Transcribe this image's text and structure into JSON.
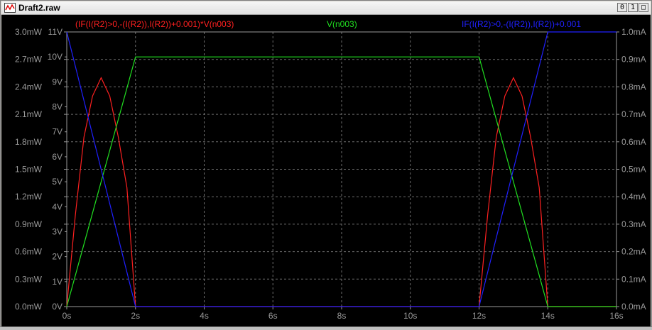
{
  "window": {
    "title": "Draft2.raw",
    "buttons": {
      "minimize": "0",
      "restore": "1",
      "close": "□"
    }
  },
  "colors": {
    "background": "#000000",
    "axis": "#9a9a9a",
    "grid": "#6e6e6e",
    "power": "#ff2020",
    "voltage": "#20e020",
    "current": "#2020ff"
  },
  "chart_data": {
    "type": "line",
    "grid": true,
    "x_axis": {
      "range": [
        0,
        16
      ],
      "ticks": [
        "0s",
        "2s",
        "4s",
        "6s",
        "8s",
        "10s",
        "12s",
        "14s",
        "16s"
      ],
      "tick_values": [
        0,
        2,
        4,
        6,
        8,
        10,
        12,
        14,
        16
      ]
    },
    "y_left_power": {
      "range": [
        0,
        3.0
      ],
      "ticks": [
        "0.0mW",
        "0.3mW",
        "0.6mW",
        "0.9mW",
        "1.2mW",
        "1.5mW",
        "1.8mW",
        "2.1mW",
        "2.4mW",
        "2.7mW",
        "3.0mW"
      ],
      "tick_values": [
        0,
        0.3,
        0.6,
        0.9,
        1.2,
        1.5,
        1.8,
        2.1,
        2.4,
        2.7,
        3.0
      ]
    },
    "y_left_voltage": {
      "range": [
        0,
        11
      ],
      "ticks": [
        "0V",
        "1V",
        "2V",
        "3V",
        "4V",
        "5V",
        "6V",
        "7V",
        "8V",
        "9V",
        "10V",
        "11V"
      ],
      "tick_values": [
        0,
        1,
        2,
        3,
        4,
        5,
        6,
        7,
        8,
        9,
        10,
        11
      ]
    },
    "y_right_current": {
      "range": [
        0,
        1.0
      ],
      "ticks": [
        "0.0mA",
        "0.1mA",
        "0.2mA",
        "0.3mA",
        "0.4mA",
        "0.5mA",
        "0.6mA",
        "0.7mA",
        "0.8mA",
        "0.9mA",
        "1.0mA"
      ],
      "tick_values": [
        0,
        0.1,
        0.2,
        0.3,
        0.4,
        0.5,
        0.6,
        0.7,
        0.8,
        0.9,
        1.0
      ]
    },
    "series": [
      {
        "name": "(IF(I(R2)>0,-(I(R2)),I(R2))+0.001)*V(n003)",
        "axis": "power",
        "color": "#ff2020",
        "points": [
          [
            0,
            0
          ],
          [
            0.25,
            1.0
          ],
          [
            0.5,
            1.85
          ],
          [
            0.75,
            2.3
          ],
          [
            1.0,
            2.5
          ],
          [
            1.25,
            2.3
          ],
          [
            1.5,
            1.85
          ],
          [
            1.75,
            1.3
          ],
          [
            2,
            0
          ],
          [
            11.0,
            0
          ],
          [
            12.0,
            0
          ],
          [
            12.25,
            1.0
          ],
          [
            12.5,
            1.85
          ],
          [
            12.75,
            2.3
          ],
          [
            13.0,
            2.5
          ],
          [
            13.25,
            2.3
          ],
          [
            13.5,
            1.85
          ],
          [
            13.75,
            1.3
          ],
          [
            14,
            0
          ],
          [
            16,
            0
          ]
        ]
      },
      {
        "name": "V(n003)",
        "axis": "voltage",
        "color": "#20e020",
        "points": [
          [
            0,
            0
          ],
          [
            2,
            10
          ],
          [
            11.5,
            10
          ],
          [
            12,
            10
          ],
          [
            14,
            0
          ],
          [
            16,
            0
          ]
        ]
      },
      {
        "name": "IF(I(R2)>0,-(I(R2)),I(R2))+0.001",
        "axis": "current",
        "color": "#2020ff",
        "points": [
          [
            0,
            1.0
          ],
          [
            2,
            0
          ],
          [
            11.0,
            0
          ],
          [
            12,
            0
          ],
          [
            14,
            1.0
          ],
          [
            16,
            1.0
          ]
        ]
      }
    ]
  }
}
